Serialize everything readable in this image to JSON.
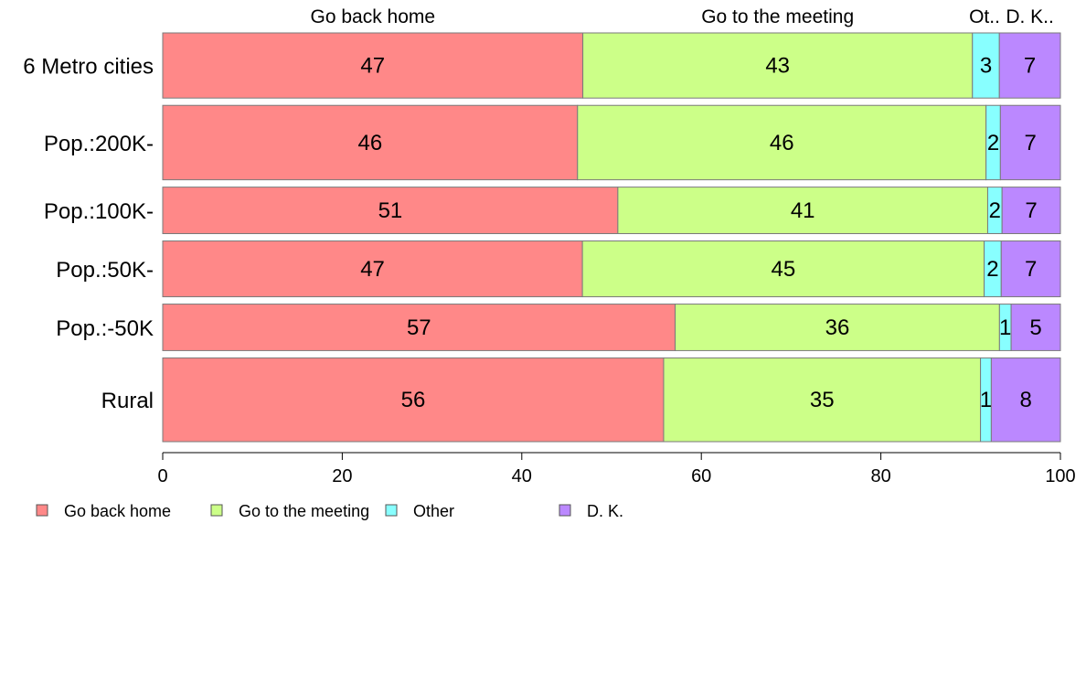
{
  "chart_data": {
    "type": "bar",
    "orientation": "horizontal",
    "stacked": true,
    "categories": [
      "6 Metro cities",
      "Pop.:200K-",
      "Pop.:100K-",
      "Pop.:50K-",
      "Pop.:-50K",
      "Rural"
    ],
    "row_weights": [
      1.4,
      1.6,
      1.0,
      1.2,
      1.0,
      1.8
    ],
    "series": [
      {
        "name": "Go back home",
        "color": "#ff8888",
        "values": [
          46.8,
          46.3,
          50.7,
          46.8,
          57.2,
          55.8
        ]
      },
      {
        "name": "Go to the meeting",
        "color": "#ccff88",
        "values": [
          43.4,
          45.6,
          41.2,
          44.8,
          36.2,
          35.3
        ]
      },
      {
        "name": "Other",
        "color": "#88ffff",
        "values": [
          3.0,
          1.6,
          1.6,
          1.9,
          1.3,
          1.2
        ]
      },
      {
        "name": "D. K.",
        "color": "#bb88ff",
        "values": [
          6.8,
          6.7,
          6.5,
          6.6,
          5.5,
          7.7
        ]
      }
    ],
    "data_labels": [
      [
        "47",
        "43",
        "3",
        "7"
      ],
      [
        "46",
        "46",
        "2",
        "7"
      ],
      [
        "51",
        "41",
        "2",
        "7"
      ],
      [
        "47",
        "45",
        "2",
        "7"
      ],
      [
        "57",
        "36",
        "1",
        "5"
      ],
      [
        "56",
        "35",
        "1",
        "8"
      ]
    ],
    "column_labels": [
      "Go back home",
      "Go to the meeting",
      "Ot..",
      "D. K.."
    ],
    "xlim": [
      0,
      100
    ],
    "xticks": [
      "0",
      "20",
      "40",
      "60",
      "80",
      "100"
    ],
    "legend": {
      "position": "bottom",
      "entries": [
        "Go back home",
        "Go to the meeting",
        "Other",
        "D. K."
      ]
    },
    "grid": false,
    "title": "",
    "xlabel": "",
    "ylabel": ""
  }
}
